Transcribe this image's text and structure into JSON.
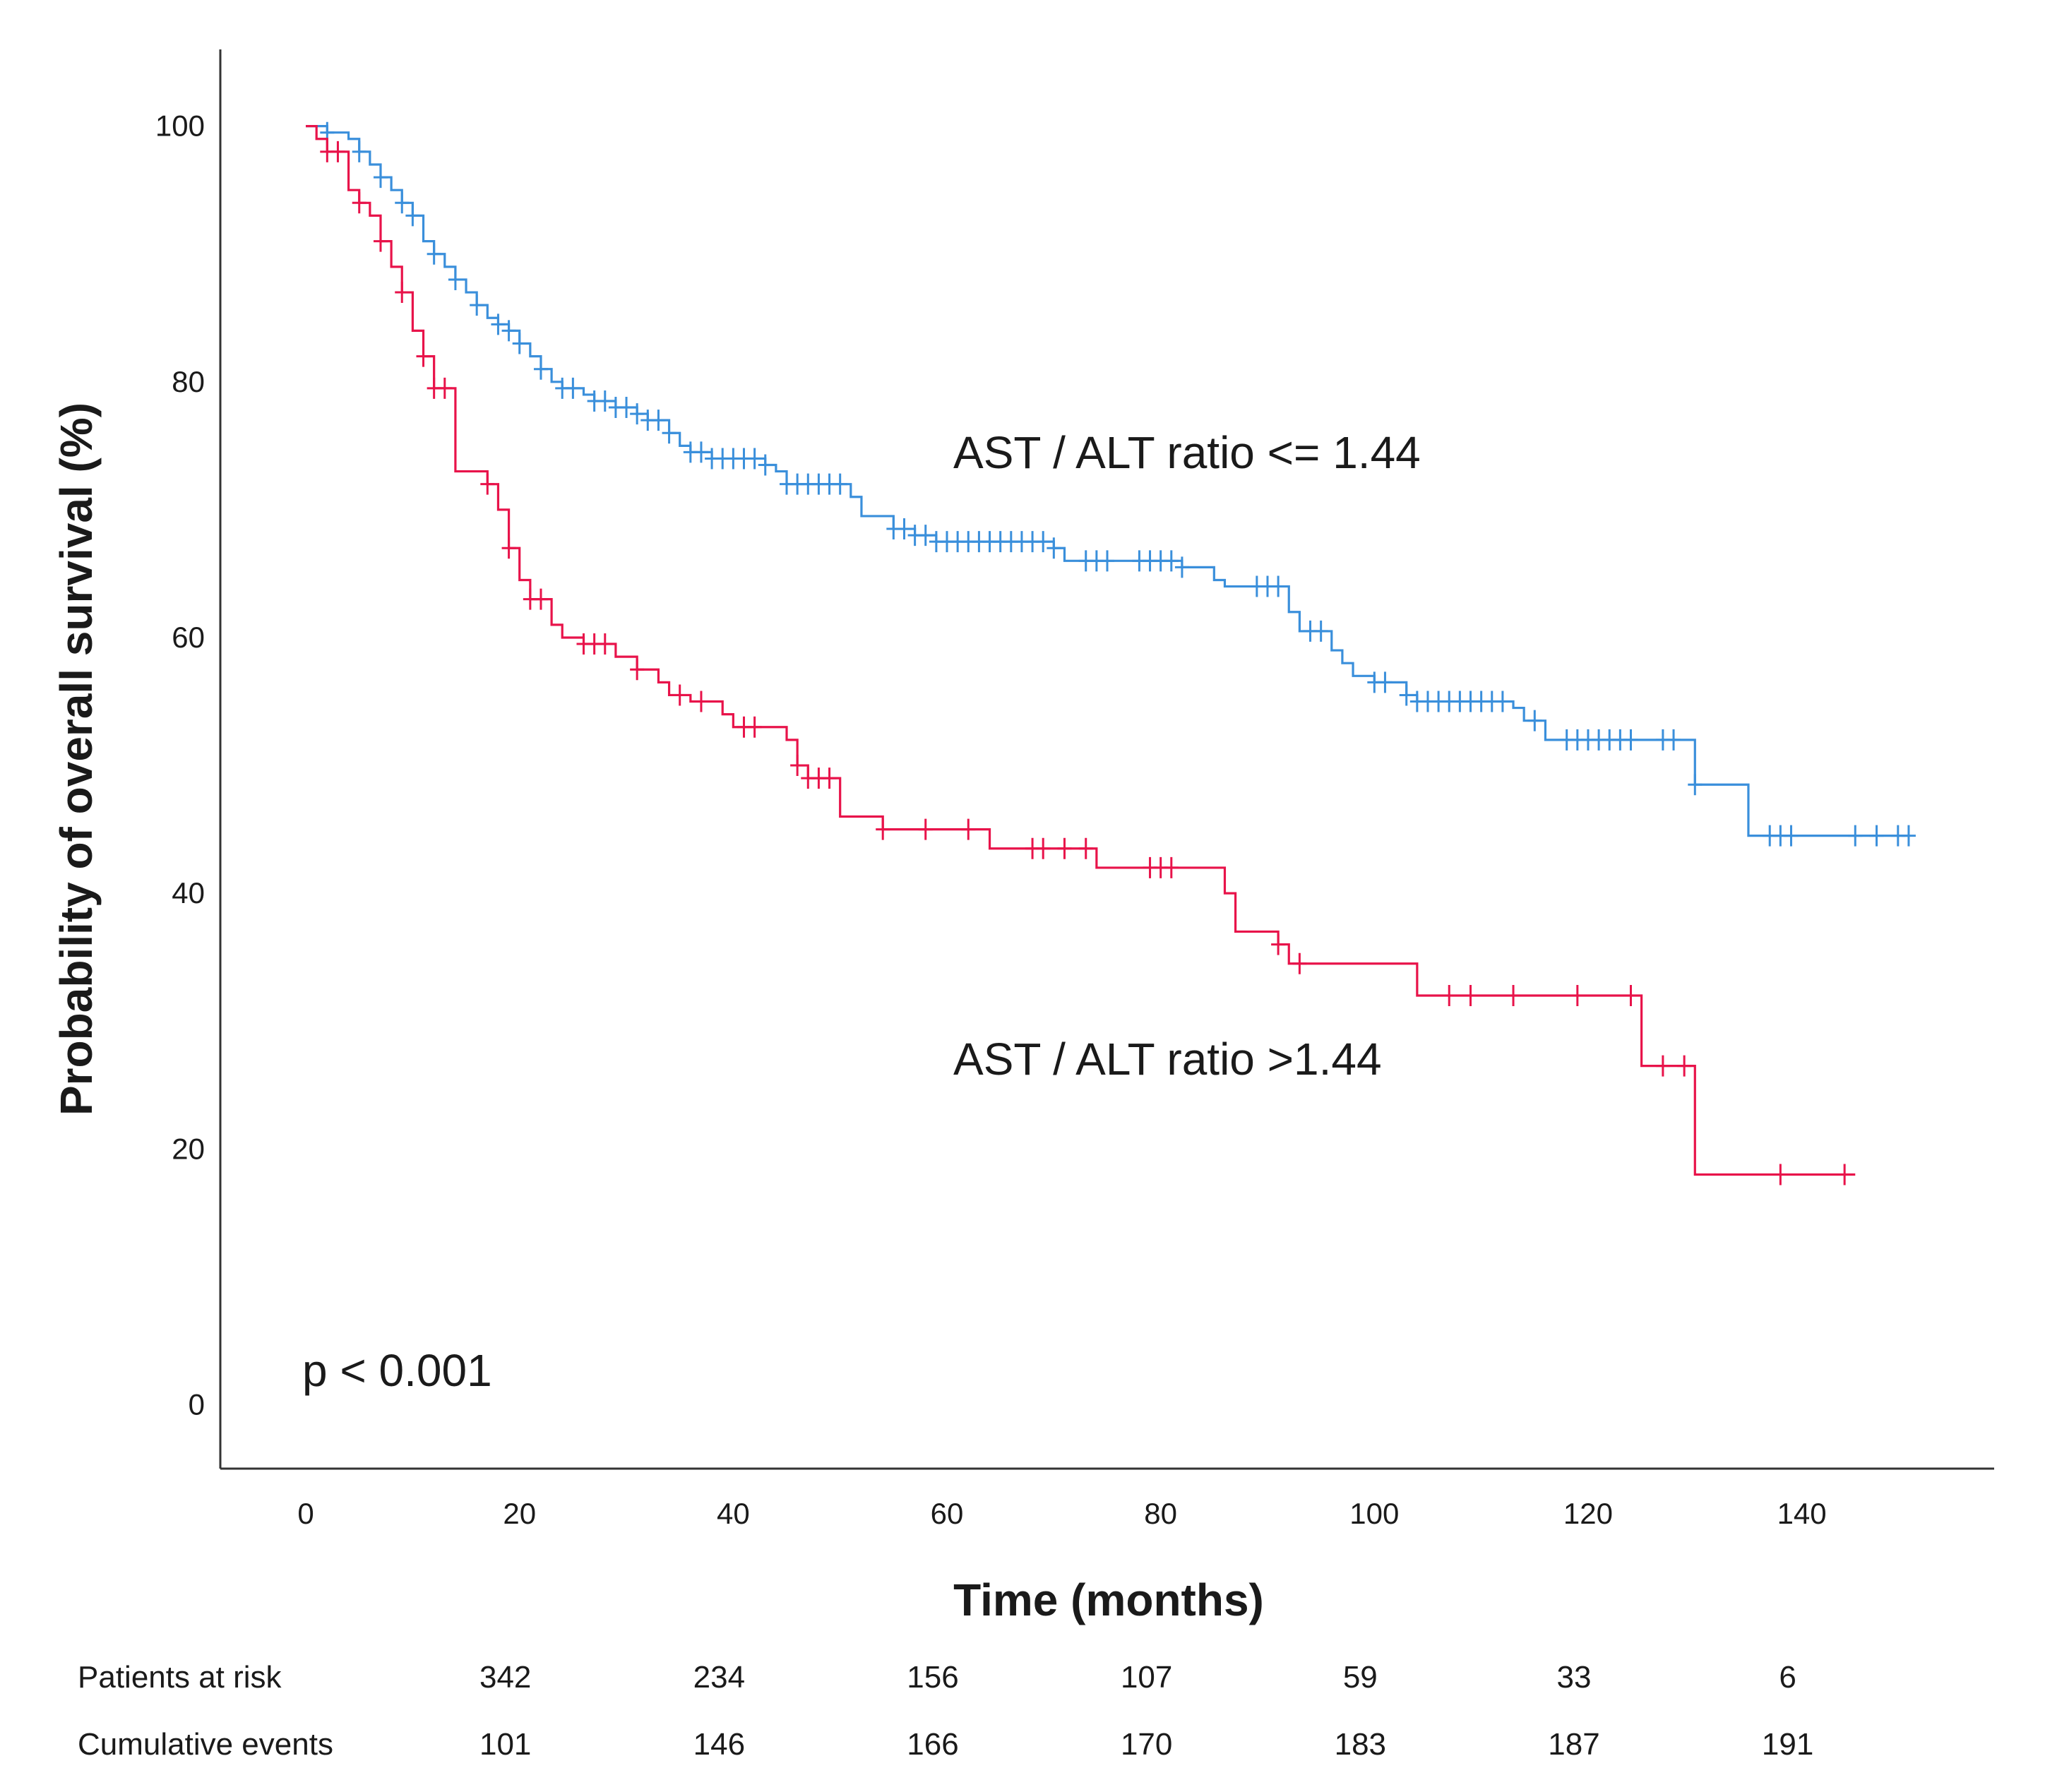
{
  "chart_data": {
    "type": "line",
    "subtype": "kaplan-meier",
    "title": "",
    "xlabel": "Time (months)",
    "ylabel": "Probability of overall survival (%)",
    "xlim": [
      -8,
      158
    ],
    "ylim": [
      -5,
      106
    ],
    "xticks": [
      0,
      20,
      40,
      60,
      80,
      100,
      120,
      140
    ],
    "yticks": [
      0,
      20,
      40,
      60,
      80,
      100
    ],
    "grid": false,
    "annotations": {
      "p_value": "p < 0.001",
      "label_low": "AST / ALT ratio <= 1.44",
      "label_high": "AST / ALT ratio >1.44"
    },
    "series": [
      {
        "name": "AST / ALT ratio <= 1.44",
        "color": "#3a8fdb",
        "steps": [
          [
            0,
            100
          ],
          [
            2,
            99.5
          ],
          [
            4,
            99
          ],
          [
            5,
            98
          ],
          [
            6,
            97
          ],
          [
            7,
            96
          ],
          [
            8,
            95
          ],
          [
            9,
            94
          ],
          [
            10,
            93
          ],
          [
            11,
            91
          ],
          [
            12,
            90
          ],
          [
            13,
            89
          ],
          [
            14,
            88
          ],
          [
            15,
            87
          ],
          [
            16,
            86
          ],
          [
            17,
            85
          ],
          [
            18,
            84.5
          ],
          [
            19,
            84
          ],
          [
            20,
            83
          ],
          [
            21,
            82
          ],
          [
            22,
            81
          ],
          [
            23,
            80
          ],
          [
            24,
            79.5
          ],
          [
            26,
            79
          ],
          [
            27,
            78.5
          ],
          [
            29,
            78
          ],
          [
            31,
            77.5
          ],
          [
            32,
            77
          ],
          [
            34,
            76
          ],
          [
            35,
            75
          ],
          [
            36,
            74.5
          ],
          [
            38,
            74
          ],
          [
            43,
            73.5
          ],
          [
            44,
            73
          ],
          [
            45,
            72
          ],
          [
            51,
            71
          ],
          [
            52,
            69.5
          ],
          [
            55,
            68.5
          ],
          [
            57,
            68
          ],
          [
            59,
            67.5
          ],
          [
            70,
            67
          ],
          [
            71,
            66
          ],
          [
            82,
            65.5
          ],
          [
            85,
            64.5
          ],
          [
            86,
            64
          ],
          [
            92,
            62
          ],
          [
            93,
            60.5
          ],
          [
            96,
            59
          ],
          [
            97,
            58
          ],
          [
            98,
            57
          ],
          [
            100,
            56.5
          ],
          [
            103,
            55.5
          ],
          [
            104,
            55
          ],
          [
            113,
            54.5
          ],
          [
            114,
            53.5
          ],
          [
            116,
            52
          ],
          [
            130,
            48.5
          ],
          [
            135,
            44.5
          ],
          [
            150,
            44.5
          ]
        ],
        "censor": [
          2,
          5,
          7,
          9,
          10,
          12,
          14,
          16,
          18,
          19,
          20,
          22,
          24,
          25,
          27,
          28,
          29,
          30,
          31,
          32,
          33,
          34,
          36,
          37,
          38,
          39,
          40,
          41,
          42,
          43,
          45,
          46,
          47,
          48,
          49,
          50,
          55,
          56,
          57,
          58,
          59,
          60,
          61,
          62,
          63,
          64,
          65,
          66,
          67,
          68,
          69,
          70,
          73,
          74,
          75,
          78,
          79,
          80,
          81,
          82,
          89,
          90,
          91,
          94,
          95,
          100,
          101,
          103,
          104,
          105,
          106,
          107,
          108,
          109,
          110,
          111,
          112,
          115,
          118,
          119,
          120,
          121,
          122,
          123,
          124,
          127,
          128,
          130,
          137,
          138,
          139,
          145,
          147,
          149,
          150
        ]
      },
      {
        "name": "AST / ALT ratio >1.44",
        "color": "#e8134a",
        "steps": [
          [
            0,
            100
          ],
          [
            1,
            99
          ],
          [
            2,
            98
          ],
          [
            4,
            95
          ],
          [
            5,
            94
          ],
          [
            6,
            93
          ],
          [
            7,
            91
          ],
          [
            8,
            89
          ],
          [
            9,
            87
          ],
          [
            10,
            84
          ],
          [
            11,
            82
          ],
          [
            12,
            79.5
          ],
          [
            14,
            73
          ],
          [
            17,
            72
          ],
          [
            18,
            70
          ],
          [
            19,
            67
          ],
          [
            20,
            64.5
          ],
          [
            21,
            63
          ],
          [
            23,
            61
          ],
          [
            24,
            60
          ],
          [
            26,
            59.5
          ],
          [
            29,
            58.5
          ],
          [
            31,
            57.5
          ],
          [
            33,
            56.5
          ],
          [
            34,
            55.5
          ],
          [
            36,
            55
          ],
          [
            39,
            54
          ],
          [
            40,
            53
          ],
          [
            45,
            52
          ],
          [
            46,
            50
          ],
          [
            47,
            49
          ],
          [
            50,
            46
          ],
          [
            54,
            45
          ],
          [
            64,
            43.5
          ],
          [
            74,
            42
          ],
          [
            86,
            40
          ],
          [
            87,
            37
          ],
          [
            91,
            36
          ],
          [
            92,
            34.5
          ],
          [
            104,
            32
          ],
          [
            125,
            26.5
          ],
          [
            130,
            18
          ],
          [
            145,
            18
          ]
        ],
        "censor": [
          2,
          3,
          5,
          7,
          9,
          11,
          12,
          13,
          17,
          19,
          21,
          22,
          26,
          27,
          28,
          31,
          35,
          37,
          41,
          42,
          46,
          47,
          48,
          49,
          54,
          58,
          62,
          68,
          69,
          71,
          73,
          79,
          80,
          81,
          91,
          93,
          107,
          109,
          113,
          119,
          124,
          127,
          129,
          138,
          144
        ]
      }
    ],
    "risk_table": {
      "time_points": [
        20,
        40,
        60,
        80,
        100,
        120,
        140
      ],
      "rows": [
        {
          "label": "Patients at risk",
          "values": [
            "342",
            "234",
            "156",
            "107",
            "59",
            "33",
            "6"
          ]
        },
        {
          "label": "Cumulative events",
          "values": [
            "101",
            "146",
            "166",
            "170",
            "183",
            "187",
            "191"
          ]
        }
      ]
    }
  }
}
